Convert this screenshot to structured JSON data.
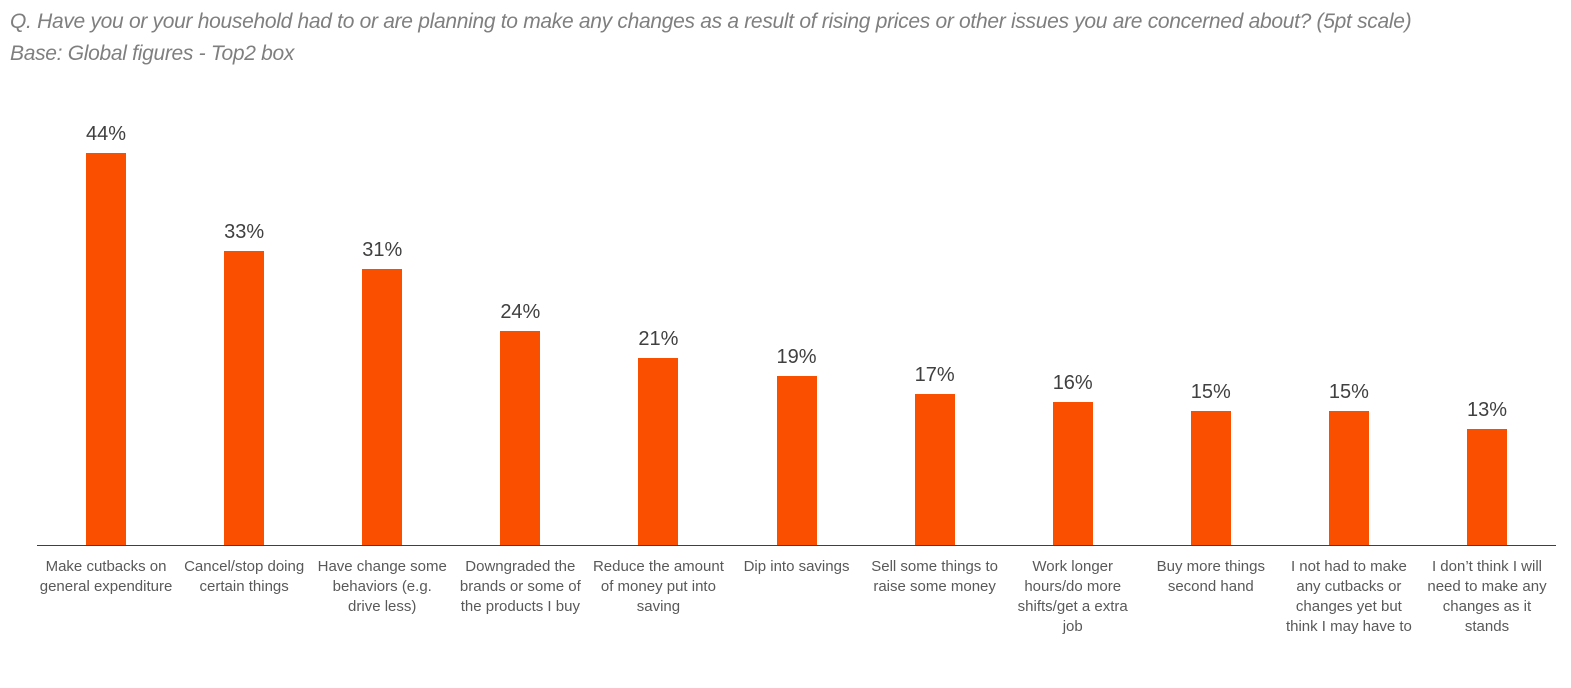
{
  "header": {
    "title": "Q. Have you or your household had to or are planning to make any changes as a result of rising prices or other issues you are concerned about? (5pt scale)",
    "subtitle": "Base: Global figures - Top2 box"
  },
  "chart_data": {
    "type": "bar",
    "title": "Q. Have you or your household had to or are planning to make any changes as a result of rising prices or other issues you are concerned about? (5pt scale)",
    "subtitle": "Base: Global figures - Top2 box",
    "categories": [
      "Make cutbacks on general expenditure",
      "Cancel/stop doing certain things",
      "Have change some behaviors (e.g. drive less)",
      "Downgraded the brands or some of the products I buy",
      "Reduce the amount of money put into saving",
      "Dip into savings",
      "Sell some things to raise some money",
      "Work longer hours/do more shifts/get a extra job",
      "Buy more things second hand",
      "I not had to make any cutbacks or changes yet but think I may have to",
      "I don’t think I will need to make any changes as it stands"
    ],
    "values": [
      44,
      33,
      31,
      24,
      21,
      19,
      17,
      16,
      15,
      15,
      13
    ],
    "unit": "%",
    "data_labels": [
      "44%",
      "33%",
      "31%",
      "24%",
      "21%",
      "19%",
      "17%",
      "16%",
      "15%",
      "15%",
      "13%"
    ],
    "xlabel": "",
    "ylabel": "",
    "ylim": [
      0,
      50
    ],
    "grid": false,
    "legend": "none",
    "colors": {
      "bar": "#FB4F00",
      "value_label": "#404040",
      "category_label": "#595959",
      "axis_line": "#404040",
      "title_text": "#7f7f7f"
    }
  }
}
